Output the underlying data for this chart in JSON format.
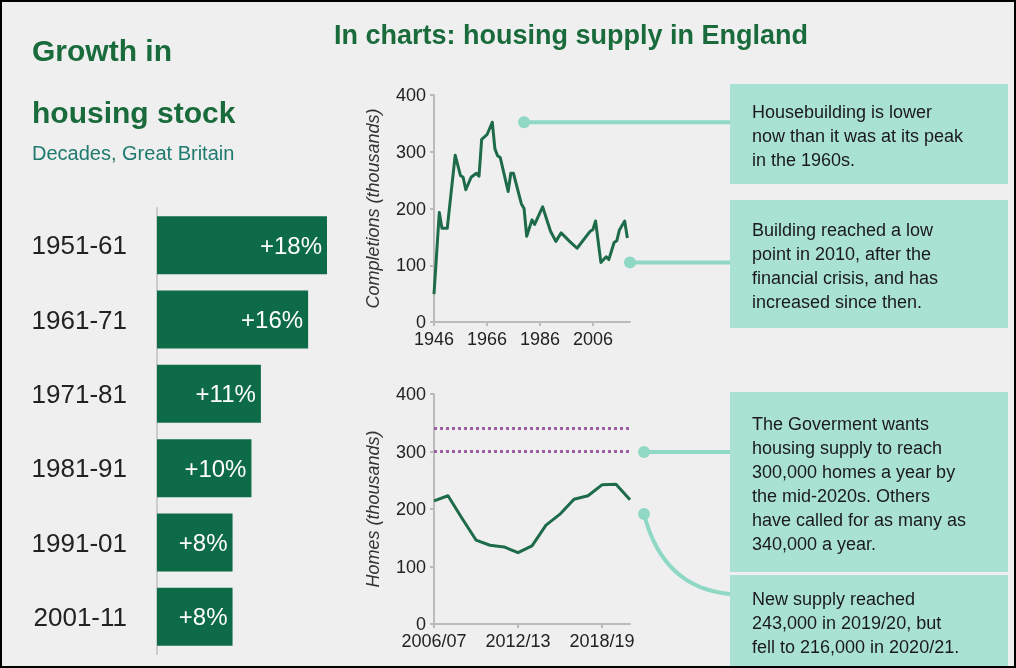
{
  "chart_data": [
    {
      "type": "bar",
      "orientation": "horizontal",
      "title": "Growth in housing stock",
      "subtitle": "Decades, Great Britain",
      "categories": [
        "1951-61",
        "1961-71",
        "1971-81",
        "1981-91",
        "1991-01",
        "2001-11"
      ],
      "values": [
        18,
        16,
        11,
        10,
        8,
        8
      ],
      "value_labels": [
        "+18%",
        "+16%",
        "+11%",
        "+10%",
        "+8%",
        "+8%"
      ],
      "color": "#0d6b47"
    },
    {
      "type": "line",
      "title": "In charts: housing supply in England",
      "ylabel": "Completions (thousands)",
      "x": [
        1946,
        1948,
        1949,
        1951,
        1954,
        1956,
        1957,
        1958,
        1960,
        1962,
        1963,
        1964,
        1966,
        1968,
        1969,
        1970,
        1971,
        1974,
        1975,
        1976,
        1979,
        1980,
        1981,
        1983,
        1984,
        1987,
        1990,
        1992,
        1994,
        1997,
        2000,
        2005,
        2006,
        2007,
        2009,
        2011,
        2012,
        2014,
        2015,
        2016,
        2018,
        2019
      ],
      "values": [
        49,
        193,
        165,
        165,
        294,
        258,
        255,
        233,
        255,
        262,
        257,
        322,
        330,
        352,
        305,
        293,
        290,
        230,
        262,
        262,
        208,
        200,
        151,
        180,
        172,
        203,
        160,
        142,
        157,
        143,
        130,
        160,
        163,
        178,
        105,
        115,
        110,
        140,
        143,
        162,
        178,
        148
      ],
      "color": "#1e6b4a",
      "xlim": [
        1946,
        2020
      ],
      "xticks": [
        1946,
        1966,
        1986,
        2006
      ],
      "ylim": [
        0,
        400
      ],
      "yticks": [
        0,
        100,
        200,
        300,
        400
      ],
      "annotations": [
        {
          "text": "Housebuilding is lower now than it was at its peak in the 1960s.",
          "x": 1980,
          "y": 352
        },
        {
          "text": "Building reached a low point in 2010, after the financial crisis, and has increased since then.",
          "x": 2020,
          "y": 105
        }
      ]
    },
    {
      "type": "line",
      "ylabel": "Homes (thousands)",
      "categories": [
        "2006/07",
        null,
        null,
        null,
        null,
        null,
        "2012/13",
        null,
        null,
        null,
        null,
        null,
        "2018/19",
        null,
        null
      ],
      "values": [
        214,
        223,
        184,
        146,
        137,
        134,
        124,
        136,
        172,
        191,
        217,
        223,
        242,
        243,
        216
      ],
      "color": "#1e6b4a",
      "ylim": [
        0,
        400
      ],
      "yticks": [
        0,
        100,
        200,
        300,
        400
      ],
      "ref_lines": [
        {
          "axis": "y",
          "value": 340,
          "color": "#9b5fa0",
          "line_style": "dotted"
        },
        {
          "axis": "y",
          "value": 300,
          "color": "#9b5fa0",
          "line_style": "dotted"
        }
      ],
      "annotations": [
        "The Goverment wants housing supply to reach 300,000 homes a year by the mid-2020s. Others have called for as many as 340,000 a year.",
        "New supply reached 243,000 in 2019/20, but fell to 216,000 in 2020/21."
      ]
    }
  ]
}
